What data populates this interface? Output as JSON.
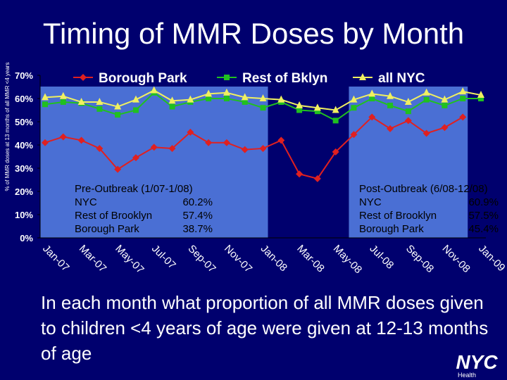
{
  "title": "Timing of MMR Doses by Month",
  "ylabel": "% of MMR doses at 13 months of all MMR <4 years",
  "caption": "In each month what proportion of all MMR doses given to children <4 years of age were given at 12-13 months of age",
  "logo": {
    "text": "NYC",
    "subtext": "Health"
  },
  "summaries": {
    "pre": {
      "heading": "Pre-Outbreak (1/07-1/08)",
      "rows": [
        {
          "label": "NYC",
          "value": "60.2%"
        },
        {
          "label": "Rest of Brooklyn",
          "value": "57.4%"
        },
        {
          "label": "Borough Park",
          "value": "38.7%"
        }
      ]
    },
    "post": {
      "heading": "Post-Outbreak (6/08-12/08)",
      "rows": [
        {
          "label": "NYC",
          "value": "60.9%"
        },
        {
          "label": "Rest of Brooklyn",
          "value": "57.5%"
        },
        {
          "label": "Borough Park",
          "value": "45.4%"
        }
      ]
    }
  },
  "colors": {
    "background": "#00006e",
    "highlight_box": "#4a6fd4",
    "borough_park": "#e02020",
    "rest_bklyn": "#20c020",
    "all_nyc": "#f0f060"
  },
  "chart_data": {
    "type": "line",
    "ylim": [
      0,
      70
    ],
    "yticks": [
      "0%",
      "10%",
      "20%",
      "30%",
      "40%",
      "50%",
      "60%",
      "70%"
    ],
    "x_tick_labels": [
      "Jan-07",
      "Mar-07",
      "May-07",
      "Jul-07",
      "Sep-07",
      "Nov-07",
      "Jan-08",
      "Mar-08",
      "May-08",
      "Jul-08",
      "Sep-08",
      "Nov-08",
      "Jan-09"
    ],
    "x": [
      "Jan-07",
      "Feb-07",
      "Mar-07",
      "Apr-07",
      "May-07",
      "Jun-07",
      "Jul-07",
      "Aug-07",
      "Sep-07",
      "Oct-07",
      "Nov-07",
      "Dec-07",
      "Jan-08",
      "Feb-08",
      "Mar-08",
      "Apr-08",
      "May-08",
      "Jun-08",
      "Jul-08",
      "Aug-08",
      "Sep-08",
      "Oct-08",
      "Nov-08",
      "Dec-08",
      "Jan-09"
    ],
    "highlighted_periods": [
      [
        "Jan-07",
        "Jan-08"
      ],
      [
        "Jun-08",
        "Dec-08"
      ]
    ],
    "legend_position": "top",
    "series": [
      {
        "name": "Borough Park",
        "color": "#e02020",
        "marker": "diamond",
        "values": [
          41,
          43.5,
          42,
          38.5,
          29.5,
          34.5,
          39,
          38.5,
          45.5,
          41,
          41,
          38,
          38.5,
          42,
          27.5,
          25.5,
          37,
          44.5,
          52,
          47,
          50.5,
          45,
          47.5,
          52,
          null
        ]
      },
      {
        "name": "Rest of Bklyn",
        "color": "#20c020",
        "marker": "square",
        "values": [
          57.5,
          58.5,
          58,
          55.5,
          53,
          55,
          62.5,
          56.5,
          58.5,
          60,
          60,
          58.5,
          56,
          58.5,
          55,
          54.5,
          50.5,
          56,
          60,
          57,
          54.5,
          59.5,
          57,
          60,
          60
        ]
      },
      {
        "name": "all NYC",
        "color": "#f0f060",
        "marker": "triangle",
        "values": [
          60.5,
          61,
          58.5,
          58.5,
          56.5,
          59.5,
          63.5,
          59,
          59.5,
          62,
          62.5,
          60.5,
          60,
          59.5,
          57,
          56,
          55,
          59.5,
          62,
          61,
          58.5,
          62.5,
          59.5,
          63,
          61.5
        ]
      }
    ]
  }
}
